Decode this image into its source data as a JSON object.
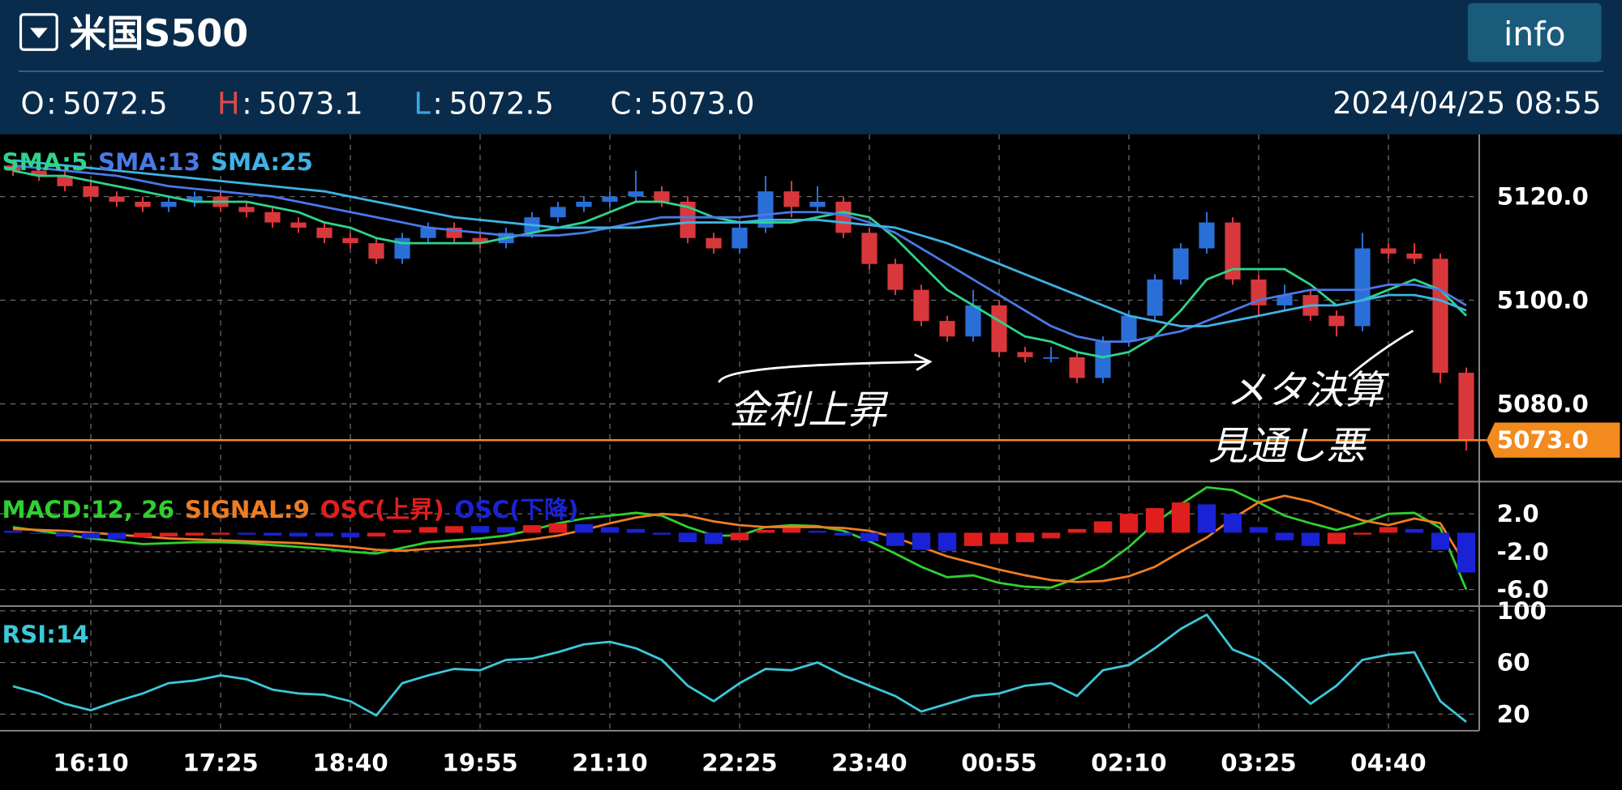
{
  "header": {
    "title": "米国S500",
    "info_button": "info",
    "ohlc": [
      {
        "key": "O",
        "sep": ":",
        "value": "5072.5",
        "color": "#ffffff"
      },
      {
        "key": "H",
        "sep": ":",
        "value": "5073.1",
        "color": "#e04848"
      },
      {
        "key": "L",
        "sep": ":",
        "value": "5072.5",
        "color": "#3aa6e6"
      },
      {
        "key": "C",
        "sep": ":",
        "value": "5073.0",
        "color": "#ffffff"
      }
    ],
    "datetime": "2024/04/25 08:55"
  },
  "chart_data": [
    {
      "type": "candlestick",
      "categories": [
        null,
        null,
        null,
        "16:10",
        null,
        null,
        null,
        null,
        "17:25",
        null,
        null,
        null,
        null,
        "18:40",
        null,
        null,
        null,
        null,
        "19:55",
        null,
        null,
        null,
        null,
        "21:10",
        null,
        null,
        null,
        null,
        "22:25",
        null,
        null,
        null,
        null,
        "23:40",
        null,
        null,
        null,
        null,
        "00:55",
        null,
        null,
        null,
        null,
        "02:10",
        null,
        null,
        null,
        null,
        "03:25",
        null,
        null,
        null,
        null,
        "04:40",
        null,
        null,
        null
      ],
      "open": [
        5126,
        5125,
        5124,
        5122,
        5120,
        5119,
        5118,
        5119,
        5120,
        5118,
        5117,
        5115,
        5114,
        5112,
        5111,
        5108,
        5112,
        5114,
        5112,
        5111,
        5113,
        5116,
        5118,
        5119,
        5120,
        5121,
        5119,
        5112,
        5110,
        5114,
        5121,
        5118,
        5119,
        5113,
        5107,
        5102,
        5096,
        5093,
        5099,
        5090,
        5089,
        5089,
        5085,
        5092,
        5097,
        5104,
        5110,
        5115,
        5104,
        5099,
        5101,
        5097,
        5095,
        5110,
        5109,
        5108,
        5086
      ],
      "high": [
        5127,
        5126,
        5125,
        5123,
        5121,
        5120,
        5120,
        5121,
        5121,
        5119,
        5118,
        5116,
        5115,
        5113,
        5112,
        5113,
        5115,
        5115,
        5113,
        5114,
        5117,
        5119,
        5120,
        5121,
        5125,
        5122,
        5120,
        5113,
        5115,
        5124,
        5123,
        5122,
        5120,
        5114,
        5108,
        5103,
        5097,
        5102,
        5100,
        5091,
        5091,
        5090,
        5093,
        5098,
        5105,
        5111,
        5117,
        5116,
        5105,
        5103,
        5102,
        5098,
        5113,
        5111,
        5111,
        5109,
        5087
      ],
      "low": [
        5124,
        5123,
        5121,
        5119,
        5118,
        5117,
        5117,
        5118,
        5117,
        5116,
        5114,
        5113,
        5111,
        5110,
        5107,
        5107,
        5111,
        5111,
        5110,
        5110,
        5112,
        5115,
        5117,
        5118,
        5119,
        5118,
        5111,
        5109,
        5109,
        5113,
        5116,
        5117,
        5112,
        5106,
        5101,
        5095,
        5092,
        5092,
        5089,
        5088,
        5088,
        5084,
        5084,
        5091,
        5096,
        5103,
        5109,
        5103,
        5097,
        5098,
        5096,
        5093,
        5094,
        5108,
        5107,
        5084,
        5071
      ],
      "close": [
        5125,
        5124,
        5122,
        5120,
        5119,
        5118,
        5119,
        5120,
        5118,
        5117,
        5115,
        5114,
        5112,
        5111,
        5108,
        5112,
        5114,
        5112,
        5111,
        5113,
        5116,
        5118,
        5119,
        5120,
        5121,
        5119,
        5112,
        5110,
        5114,
        5121,
        5118,
        5119,
        5113,
        5107,
        5102,
        5096,
        5093,
        5099,
        5090,
        5089,
        5089,
        5085,
        5092,
        5097,
        5104,
        5110,
        5115,
        5104,
        5099,
        5101,
        5097,
        5095,
        5110,
        5109,
        5108,
        5086,
        5073
      ],
      "up_color": "#2a6fd8",
      "down_color": "#d8383c",
      "series": [
        {
          "name": "SMA:5",
          "color": "#2fd38a",
          "type": "line",
          "values": [
            5125,
            5124,
            5124,
            5123,
            5122,
            5121,
            5120,
            5119,
            5119,
            5119,
            5118,
            5117,
            5115,
            5114,
            5112,
            5111,
            5111,
            5111,
            5111,
            5112,
            5113,
            5114,
            5115,
            5117,
            5119,
            5119,
            5118,
            5116,
            5115,
            5115,
            5115,
            5116,
            5117,
            5116,
            5112,
            5107,
            5102,
            5099,
            5096,
            5093,
            5092,
            5090,
            5089,
            5090,
            5093,
            5098,
            5104,
            5106,
            5106,
            5106,
            5103,
            5099,
            5100,
            5102,
            5104,
            5102,
            5097
          ]
        },
        {
          "name": "SMA:13",
          "color": "#4a78e6",
          "type": "line",
          "values": [
            5126,
            5125.5,
            5125,
            5124.5,
            5124,
            5123,
            5122,
            5121.5,
            5121,
            5120.5,
            5120,
            5119,
            5118,
            5117,
            5116,
            5115,
            5114,
            5113.5,
            5113,
            5112.5,
            5112.5,
            5112.5,
            5113,
            5114,
            5115,
            5116,
            5116,
            5116,
            5116,
            5116.5,
            5117,
            5117,
            5116.5,
            5115,
            5113,
            5110,
            5107,
            5104,
            5101,
            5098,
            5095,
            5093,
            5092,
            5092,
            5093,
            5094,
            5096,
            5098,
            5100,
            5101,
            5102,
            5102,
            5102,
            5103,
            5103,
            5102,
            5099
          ]
        },
        {
          "name": "SMA:25",
          "color": "#3fb2e4",
          "type": "line",
          "values": [
            5127,
            5126.5,
            5126,
            5125.5,
            5125,
            5124.5,
            5124,
            5123.5,
            5123,
            5122.5,
            5122,
            5121.5,
            5121,
            5120,
            5119,
            5118,
            5117,
            5116,
            5115.5,
            5115,
            5114.5,
            5114,
            5114,
            5114,
            5114,
            5114.5,
            5115,
            5115,
            5115,
            5115.5,
            5115.5,
            5115.5,
            5115,
            5114.5,
            5114,
            5112.5,
            5111,
            5109,
            5107,
            5105,
            5103,
            5101,
            5099,
            5097,
            5096,
            5095,
            5095,
            5096,
            5097,
            5098,
            5099,
            5099,
            5100,
            5101,
            5101,
            5100,
            5098
          ]
        }
      ],
      "ylim": [
        5065,
        5132
      ],
      "yticks": [
        {
          "value": 5080,
          "label": "5080.0"
        },
        {
          "value": 5100,
          "label": "5100.0"
        },
        {
          "value": 5120,
          "label": "5120.0"
        }
      ],
      "grid": true,
      "last_price": {
        "value": 5073,
        "label": "5073.0"
      },
      "last_price_color": "#f28a1e",
      "annotations": [
        "金利上昇",
        "メタ決算",
        "見通し悪"
      ]
    },
    {
      "type": "line",
      "series": [
        {
          "name": "MACD:12, 26",
          "color": "#2fd02f",
          "type": "line",
          "values": [
            0.6,
            0.2,
            -0.2,
            -0.6,
            -0.9,
            -1.2,
            -1.1,
            -1.0,
            -1.0,
            -1.1,
            -1.3,
            -1.5,
            -1.7,
            -2.0,
            -2.2,
            -1.6,
            -1.0,
            -0.8,
            -0.6,
            -0.3,
            0.3,
            1.0,
            1.5,
            1.8,
            2.1,
            1.8,
            0.6,
            -0.3,
            -0.3,
            0.6,
            0.8,
            0.7,
            0.2,
            -0.9,
            -2.2,
            -3.6,
            -4.7,
            -4.5,
            -5.3,
            -5.7,
            -5.8,
            -4.8,
            -3.5,
            -1.5,
            1.0,
            3.0,
            4.8,
            4.5,
            3.2,
            1.8,
            1.0,
            0.3,
            1.0,
            2.0,
            2.1,
            0.5,
            -6.0
          ]
        },
        {
          "name": "SIGNAL:9",
          "color": "#ee7d22",
          "type": "line",
          "values": [
            0.4,
            0.3,
            0.2,
            0,
            -0.2,
            -0.4,
            -0.6,
            -0.7,
            -0.8,
            -0.9,
            -1.0,
            -1.1,
            -1.3,
            -1.5,
            -1.8,
            -1.9,
            -1.7,
            -1.5,
            -1.3,
            -1.0,
            -0.7,
            -0.3,
            0.3,
            1.0,
            1.6,
            2.0,
            1.8,
            1.2,
            0.8,
            0.6,
            0.6,
            0.6,
            0.5,
            0.2,
            -0.5,
            -1.5,
            -2.5,
            -3.2,
            -3.9,
            -4.5,
            -5.0,
            -5.2,
            -5.1,
            -4.6,
            -3.6,
            -2.0,
            -0.5,
            1.5,
            3.2,
            3.9,
            3.3,
            2.3,
            1.3,
            0.8,
            1.5,
            1.0,
            -3.5
          ]
        },
        {
          "name": "OSC(上昇)",
          "color": "#e01e1e",
          "type": "bar",
          "values": [
            null,
            null,
            null,
            null,
            null,
            -0.5,
            -0.4,
            -0.3,
            -0.2,
            null,
            null,
            null,
            null,
            null,
            -0.4,
            0.3,
            0.6,
            0.7,
            null,
            null,
            0.8,
            1.0,
            null,
            null,
            null,
            null,
            null,
            null,
            -0.8,
            0.3,
            0.5,
            null,
            null,
            null,
            null,
            null,
            null,
            -1.4,
            -1.2,
            -1.0,
            -0.6,
            0.4,
            1.2,
            2.0,
            2.6,
            3.2,
            null,
            null,
            null,
            null,
            null,
            -1.2,
            -0.2,
            0.6,
            null,
            null,
            null
          ]
        },
        {
          "name": "OSC(下降)",
          "color": "#1a22d6",
          "type": "bar",
          "values": [
            0.2,
            -0.1,
            -0.4,
            -0.6,
            -0.7,
            null,
            null,
            null,
            null,
            -0.2,
            -0.3,
            -0.4,
            -0.4,
            -0.5,
            null,
            null,
            null,
            null,
            0.7,
            0.6,
            null,
            null,
            0.9,
            0.6,
            0.4,
            -0.2,
            -1.0,
            -1.2,
            null,
            null,
            null,
            0.2,
            -0.3,
            -0.9,
            -1.4,
            -1.8,
            -1.9,
            null,
            null,
            null,
            null,
            null,
            null,
            null,
            null,
            null,
            3.0,
            2.0,
            0.6,
            -0.8,
            -1.4,
            null,
            null,
            null,
            0.4,
            -1.8,
            -4.2
          ]
        }
      ],
      "ylim": [
        -7.7,
        5.4
      ],
      "yticks": [
        {
          "value": 2,
          "label": "2.0"
        },
        {
          "value": -2,
          "label": "-2.0"
        },
        {
          "value": -6,
          "label": "-6.0"
        }
      ],
      "grid": true
    },
    {
      "type": "line",
      "series": [
        {
          "name": "RSI:14",
          "color": "#3cc8d8",
          "type": "line",
          "values": [
            41.6,
            36,
            28,
            23,
            30,
            36,
            44,
            46,
            50,
            47,
            39,
            36,
            35,
            30,
            19,
            44,
            50,
            55,
            54,
            62,
            63,
            68,
            74,
            76,
            71,
            62,
            42,
            30,
            44,
            55,
            54,
            60,
            50,
            42,
            34,
            22,
            28,
            34,
            36,
            42,
            44,
            34,
            54,
            58,
            71,
            86,
            97,
            70,
            62,
            46,
            28,
            42,
            62,
            66,
            68,
            30,
            14
          ]
        }
      ],
      "ylim": [
        7.2,
        103.2
      ],
      "yticks": [
        20,
        60,
        100
      ],
      "grid": true
    }
  ]
}
